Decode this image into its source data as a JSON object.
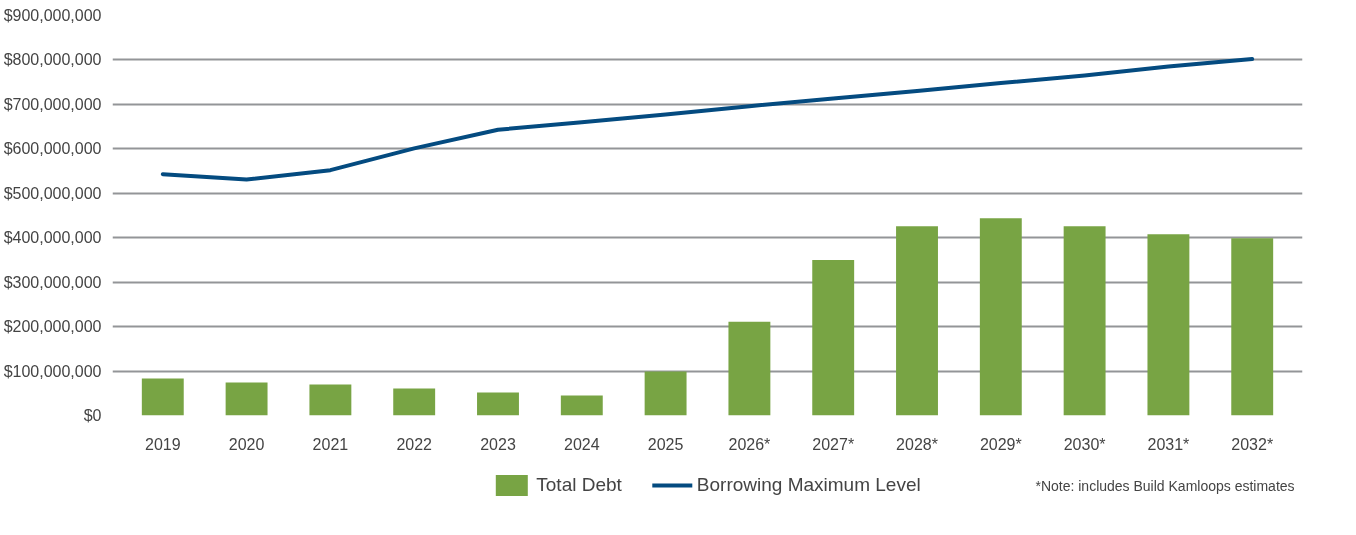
{
  "chart_data": {
    "type": "bar",
    "categories": [
      "2019",
      "2020",
      "2021",
      "2022",
      "2023",
      "2024",
      "2025",
      "2026*",
      "2027*",
      "2028*",
      "2029*",
      "2030*",
      "2031*",
      "2032*"
    ],
    "series": [
      {
        "name": "Total Debt",
        "color": "#78a444",
        "values": [
          83000000,
          74000000,
          70000000,
          61000000,
          52000000,
          45000000,
          99000000,
          211000000,
          350000000,
          426000000,
          444000000,
          426000000,
          408000000,
          399000000
        ]
      },
      {
        "name": "Borrowing Maximum Level",
        "type": "line",
        "color": "#044b80",
        "values": [
          543000000,
          531000000,
          552000000,
          601000000,
          643000000,
          660000000,
          677000000,
          696000000,
          713000000,
          730000000,
          748000000,
          765000000,
          785000000,
          802000000
        ]
      }
    ],
    "ylim": [
      0,
      900000000
    ],
    "yticks": [
      {
        "value": 0,
        "label": "$0"
      },
      {
        "value": 100000000,
        "label": "$100,000,000"
      },
      {
        "value": 200000000,
        "label": "$200,000,000"
      },
      {
        "value": 300000000,
        "label": "$300,000,000"
      },
      {
        "value": 400000000,
        "label": "$400,000,000"
      },
      {
        "value": 500000000,
        "label": "$500,000,000"
      },
      {
        "value": 600000000,
        "label": "$600,000,000"
      },
      {
        "value": 700000000,
        "label": "$700,000,000"
      },
      {
        "value": 800000000,
        "label": "$800,000,000"
      },
      {
        "value": 900000000,
        "label": "$900,000,000"
      }
    ],
    "grid": "y",
    "legend": "bottom",
    "annotations": [
      "*Note: includes Build Kamloops estimates"
    ]
  }
}
